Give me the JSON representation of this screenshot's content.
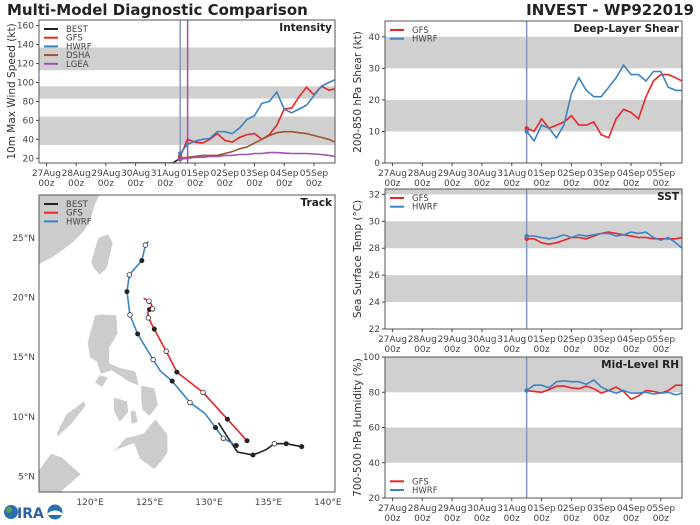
{
  "header": {
    "title": "Multi-Model Diagnostic Comparison",
    "storm": "INVEST - WP922019"
  },
  "logo": {
    "text": "CIRA"
  },
  "colors": {
    "BEST": "#222222",
    "GFS": "#e8262a",
    "HWRF": "#3a84c4",
    "DSHA": "#a0522d",
    "LGEA": "#a050b0",
    "band": "#d0d0d0",
    "init_line": "#8796bd",
    "lgea_line": "#a050b0",
    "land": "#cccccc"
  },
  "time_axis": {
    "ticks": [
      "2019-08-27T00Z",
      "2019-08-28T00Z",
      "2019-08-29T00Z",
      "2019-08-30T00Z",
      "2019-08-31T00Z",
      "2019-09-01T00Z",
      "2019-09-02T00Z",
      "2019-09-03T00Z",
      "2019-09-04T00Z",
      "2019-09-05T00Z"
    ],
    "tick_labels": [
      [
        "27Aug",
        "00z"
      ],
      [
        "28Aug",
        "00z"
      ],
      [
        "29Aug",
        "00z"
      ],
      [
        "30Aug",
        "00z"
      ],
      [
        "31Aug",
        "00z"
      ],
      [
        "01Sep",
        "00z"
      ],
      [
        "02Sep",
        "00z"
      ],
      [
        "03Sep",
        "00z"
      ],
      [
        "04Sep",
        "00z"
      ],
      [
        "05Sep",
        "00z"
      ]
    ],
    "xlim": [
      "2019-08-26T18Z",
      "2019-09-05T17Z"
    ]
  },
  "model_times": [
    "2019-08-31T12Z",
    "2019-08-31T18Z",
    "2019-09-01T00Z",
    "2019-09-01T06Z",
    "2019-09-01T12Z",
    "2019-09-01T18Z",
    "2019-09-02T00Z",
    "2019-09-02T06Z",
    "2019-09-02T12Z",
    "2019-09-02T18Z",
    "2019-09-03T00Z",
    "2019-09-03T06Z",
    "2019-09-03T12Z",
    "2019-09-03T18Z",
    "2019-09-04T00Z",
    "2019-09-04T06Z",
    "2019-09-04T12Z",
    "2019-09-04T18Z",
    "2019-09-05T00Z",
    "2019-09-05T06Z",
    "2019-09-05T12Z",
    "2019-09-05T17Z"
  ],
  "chart_data": [
    {
      "id": "intensity",
      "type": "line",
      "title": "Intensity",
      "ylabel": "10m Max Wind Speed (kt)",
      "ylim": [
        15,
        166
      ],
      "yticks": [
        20,
        40,
        60,
        80,
        100,
        120,
        140,
        160
      ],
      "bands": [
        [
          34,
          64
        ],
        [
          83,
          96
        ],
        [
          113,
          137
        ]
      ],
      "vlines": [
        {
          "t": "2019-08-31T12Z",
          "color": "init_line"
        },
        {
          "t": "2019-08-31T18Z",
          "color": "lgea_line"
        }
      ],
      "legend": "top-left",
      "series": [
        {
          "name": "BEST",
          "t": [
            "2019-08-29T12Z",
            "2019-08-29T18Z",
            "2019-08-30T00Z",
            "2019-08-30T06Z",
            "2019-08-30T12Z",
            "2019-08-30T18Z",
            "2019-08-31T00Z",
            "2019-08-31T06Z",
            "2019-08-31T12Z",
            "2019-08-31T18Z"
          ],
          "values": [
            15,
            15,
            15,
            15,
            15,
            15,
            15,
            15,
            20,
            20
          ]
        },
        {
          "name": "GFS",
          "values": [
            22,
            40,
            37,
            36,
            40,
            46,
            39,
            37,
            42,
            45,
            46,
            40,
            45,
            55,
            72,
            73,
            85,
            95,
            87,
            96,
            92,
            93
          ]
        },
        {
          "name": "HWRF",
          "values": [
            25,
            35,
            38,
            40,
            41,
            48,
            48,
            46,
            52,
            61,
            65,
            78,
            80,
            90,
            72,
            68,
            72,
            76,
            86,
            96,
            100,
            103
          ]
        },
        {
          "name": "DSHA",
          "values": [
            20,
            21,
            22,
            23,
            23,
            23,
            25,
            27,
            30,
            32,
            36,
            40,
            44,
            47,
            48,
            48,
            47,
            46,
            44,
            42,
            40,
            37
          ]
        },
        {
          "name": "LGEA",
          "values": [
            19,
            20,
            21,
            21,
            22,
            22,
            23,
            23,
            24,
            24,
            25,
            25,
            26,
            26,
            25.5,
            25,
            25,
            25,
            24.5,
            24,
            23,
            22
          ]
        }
      ]
    },
    {
      "id": "shear",
      "type": "line",
      "title": "Deep-Layer Shear",
      "ylabel": "200-850 hPa Shear (kt)",
      "ylim": [
        0,
        45
      ],
      "yticks": [
        0,
        10,
        20,
        30,
        40
      ],
      "bands": [
        [
          10,
          20
        ],
        [
          30,
          40
        ]
      ],
      "vlines": [
        {
          "t": "2019-08-31T12Z",
          "color": "init_line"
        }
      ],
      "legend": "top-left",
      "series": [
        {
          "name": "GFS",
          "values": [
            11,
            10,
            14,
            11,
            12,
            13,
            15,
            12,
            12,
            13,
            9,
            8,
            14,
            17,
            16,
            14,
            21,
            26,
            28,
            28,
            27,
            26
          ]
        },
        {
          "name": "HWRF",
          "values": [
            10,
            7,
            12,
            11,
            8,
            12,
            22,
            27,
            23,
            21,
            21,
            24,
            27,
            31,
            28,
            28,
            26,
            29,
            29,
            24,
            23,
            23
          ]
        }
      ]
    },
    {
      "id": "sst",
      "type": "line",
      "title": "SST",
      "ylabel": "Sea Surface Temp (°C)",
      "ylim": [
        22,
        32.4
      ],
      "yticks": [
        22,
        24,
        26,
        28,
        30,
        32
      ],
      "bands": [
        [
          24,
          26
        ],
        [
          28,
          30
        ],
        [
          32,
          34
        ]
      ],
      "vlines": [
        {
          "t": "2019-08-31T12Z",
          "color": "init_line"
        }
      ],
      "legend": "top-left",
      "series": [
        {
          "name": "GFS",
          "values": [
            28.7,
            28.7,
            28.4,
            28.3,
            28.4,
            28.6,
            28.8,
            28.8,
            28.7,
            28.9,
            29.1,
            29.2,
            29.1,
            29.0,
            28.9,
            28.8,
            28.8,
            28.7,
            28.7,
            28.7,
            28.7,
            28.8
          ]
        },
        {
          "name": "HWRF",
          "values": [
            28.9,
            28.9,
            28.8,
            28.7,
            28.8,
            29.0,
            28.8,
            29.0,
            28.9,
            29.0,
            29.1,
            29.1,
            28.9,
            29.0,
            29.2,
            29.1,
            29.2,
            28.8,
            28.6,
            28.8,
            28.4,
            28.0
          ]
        }
      ]
    },
    {
      "id": "rh",
      "type": "line",
      "title": "Mid-Level RH",
      "ylabel": "700-500 hPa Humidity (%)",
      "ylim": [
        20,
        100
      ],
      "yticks": [
        20,
        40,
        60,
        80,
        100
      ],
      "bands": [
        [
          40,
          60
        ],
        [
          80,
          100
        ]
      ],
      "vlines": [
        {
          "t": "2019-08-31T12Z",
          "color": "init_line"
        }
      ],
      "legend": "bottom-left",
      "series": [
        {
          "name": "GFS",
          "values": [
            81,
            80.5,
            80,
            81.5,
            83.5,
            83.5,
            82.5,
            82,
            83.5,
            82,
            79.5,
            81,
            83,
            80.5,
            76,
            78,
            81,
            80.5,
            79.5,
            81,
            84,
            84
          ]
        },
        {
          "name": "HWRF",
          "values": [
            81,
            84,
            84,
            82.5,
            86,
            86.5,
            86,
            86,
            84.5,
            87,
            83,
            81,
            79.5,
            81,
            79.5,
            79.5,
            80,
            79,
            79.5,
            80,
            78.5,
            79.5
          ]
        }
      ]
    },
    {
      "id": "track",
      "type": "scatter",
      "title": "Track",
      "xlim": [
        115.7,
        140.6
      ],
      "ylim": [
        3.7,
        28.6
      ],
      "xticks": [
        120,
        125,
        130,
        135,
        140
      ],
      "xtick_labels": [
        "120°E",
        "125°E",
        "130°E",
        "135°E",
        "140°E"
      ],
      "yticks": [
        5,
        10,
        15,
        20,
        25
      ],
      "ytick_labels": [
        "5°N",
        "10°N",
        "15°N",
        "20°N",
        "25°N"
      ],
      "legend": "top-left",
      "series": [
        {
          "name": "BEST",
          "points": [
            [
              137.8,
              7.5,
              "filled"
            ],
            [
              136.5,
              7.75,
              "filled"
            ],
            [
              135.5,
              7.75,
              "open"
            ],
            [
              134.8,
              7.25,
              ""
            ],
            [
              133.7,
              6.8,
              "filled"
            ],
            [
              132.4,
              7.05,
              ""
            ],
            [
              131.5,
              8.4,
              ""
            ],
            [
              130.8,
              9.5,
              ""
            ]
          ]
        },
        {
          "name": "GFS",
          "points": [
            [
              133.2,
              8.0,
              "filled"
            ],
            [
              131.55,
              9.8,
              "filled"
            ],
            [
              129.5,
              12.05,
              "open"
            ],
            [
              127.3,
              13.75,
              "filled"
            ],
            [
              126.4,
              15.5,
              "open"
            ],
            [
              125.4,
              17.35,
              "filled"
            ],
            [
              124.9,
              18.3,
              "open"
            ],
            [
              124.85,
              18.75,
              ""
            ],
            [
              125.0,
              19.0,
              "filled"
            ],
            [
              125.15,
              19.25,
              ""
            ],
            [
              125.25,
              19.05,
              "open"
            ],
            [
              125.15,
              19.45,
              ""
            ],
            [
              124.95,
              19.7,
              "open"
            ],
            [
              124.5,
              19.95,
              ""
            ]
          ]
        },
        {
          "name": "HWRF",
          "points": [
            [
              132.3,
              7.6,
              "filled"
            ],
            [
              131.2,
              8.2,
              "open"
            ],
            [
              130.55,
              9.1,
              "filled"
            ],
            [
              129.65,
              10.3,
              ""
            ],
            [
              128.4,
              11.2,
              "open"
            ],
            [
              126.9,
              13.0,
              "filled"
            ],
            [
              125.9,
              13.85,
              ""
            ],
            [
              125.3,
              14.8,
              "open"
            ],
            [
              124.0,
              16.95,
              "filled"
            ],
            [
              123.35,
              18.55,
              "open"
            ],
            [
              123.1,
              20.5,
              "filled"
            ],
            [
              123.3,
              21.9,
              "open"
            ],
            [
              124.35,
              23.1,
              "filled"
            ],
            [
              124.65,
              24.4,
              "open"
            ],
            [
              124.9,
              24.7,
              ""
            ]
          ]
        }
      ]
    }
  ]
}
